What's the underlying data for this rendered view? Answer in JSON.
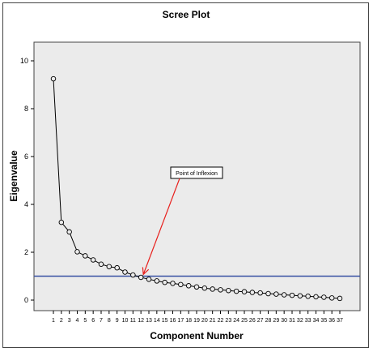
{
  "chart_data": {
    "type": "line",
    "title": "Scree Plot",
    "xlabel": "Component Number",
    "ylabel": "Eigenvalue",
    "x": [
      1,
      2,
      3,
      4,
      5,
      6,
      7,
      8,
      9,
      10,
      11,
      12,
      13,
      14,
      15,
      16,
      17,
      18,
      19,
      20,
      21,
      22,
      23,
      24,
      25,
      26,
      27,
      28,
      29,
      30,
      31,
      32,
      33,
      34,
      35,
      36,
      37
    ],
    "values": [
      9.25,
      3.25,
      2.85,
      2.02,
      1.85,
      1.68,
      1.5,
      1.4,
      1.35,
      1.17,
      1.05,
      0.95,
      0.87,
      0.8,
      0.74,
      0.7,
      0.65,
      0.6,
      0.55,
      0.5,
      0.46,
      0.43,
      0.4,
      0.37,
      0.35,
      0.32,
      0.3,
      0.27,
      0.25,
      0.22,
      0.2,
      0.18,
      0.16,
      0.14,
      0.12,
      0.09,
      0.07
    ],
    "xlim": [
      1,
      37
    ],
    "ylim": [
      0,
      10
    ],
    "yticks": [
      0,
      2,
      4,
      6,
      8,
      10
    ],
    "reference_line": 1,
    "annotation": {
      "text": "Point of Inflexion",
      "target_x": 12,
      "target_y": 0.97
    },
    "colors": {
      "plot_background": "#ebebeb",
      "line": "#000000",
      "reference_line": "#3a53a4",
      "annotation_arrow": "#e8201d"
    },
    "grid": false,
    "legend": "none"
  }
}
